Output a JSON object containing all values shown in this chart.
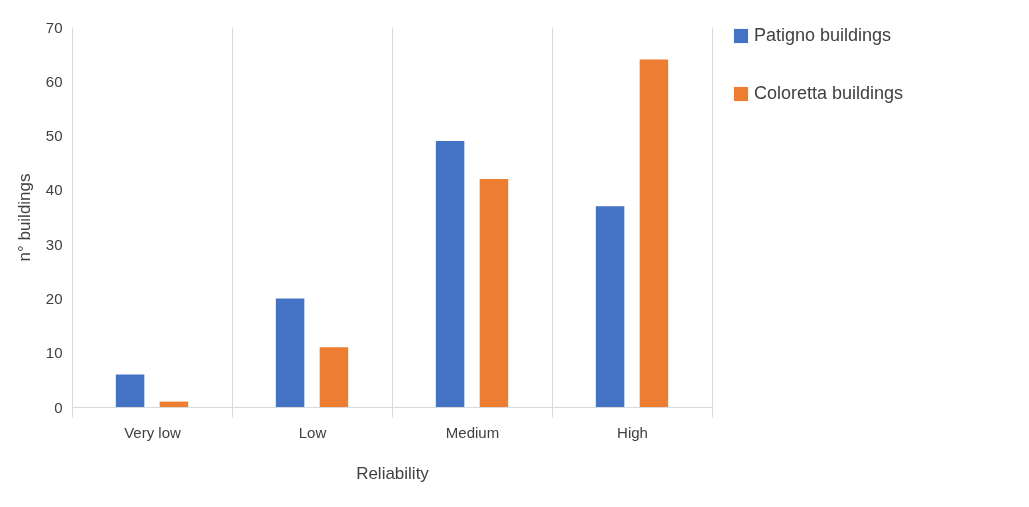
{
  "chart_data": {
    "type": "bar",
    "xlabel": "Reliability",
    "ylabel": "n° buildings",
    "categories": [
      "Very low",
      "Low",
      "Medium",
      "High"
    ],
    "series": [
      {
        "name": "Patigno buildings",
        "color": "#4472c4",
        "values": [
          6,
          20,
          49,
          37
        ]
      },
      {
        "name": "Coloretta buildings",
        "color": "#ed7d31",
        "values": [
          1,
          11,
          42,
          64
        ]
      }
    ],
    "ylim": [
      0,
      70
    ],
    "yticks": [
      0,
      10,
      20,
      30,
      40,
      50,
      60,
      70
    ],
    "grid": "x",
    "legend": "right"
  }
}
